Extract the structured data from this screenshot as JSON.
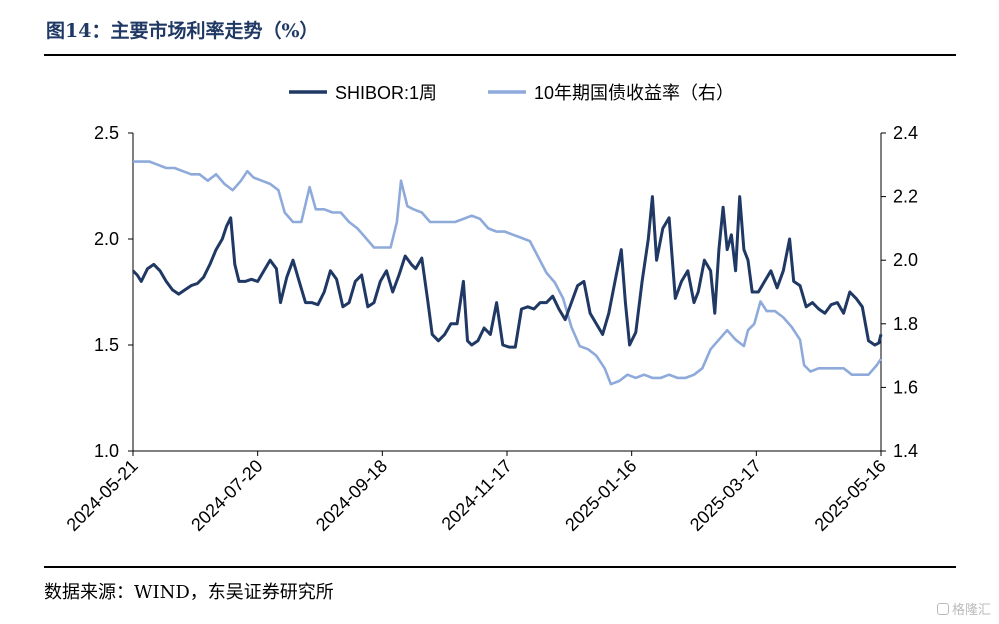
{
  "title": "图14：主要市场利率走势（%）",
  "source": "数据来源：WIND，东吴证券研究所",
  "watermark": "格隆汇",
  "colors": {
    "shibor": "#1f3864",
    "bond": "#8eaadb",
    "title": "#1f3864"
  },
  "chart_data": {
    "type": "line",
    "legend": {
      "placement": "top",
      "entries": [
        "SHIBOR:1周",
        "10年期国债收益率（右）"
      ]
    },
    "x": {
      "start": "2024-05-21",
      "end": "2025-05-16",
      "ticks": [
        "2024-05-21",
        "2024-07-20",
        "2024-09-18",
        "2024-11-17",
        "2025-01-16",
        "2025-03-17",
        "2025-05-16"
      ]
    },
    "y_left": {
      "min": 1.0,
      "max": 2.5,
      "ticks": [
        "1.0",
        "1.5",
        "2.0",
        "2.5"
      ]
    },
    "y_right": {
      "min": 1.4,
      "max": 2.4,
      "ticks": [
        "1.4",
        "1.6",
        "1.8",
        "2.0",
        "2.2",
        "2.4"
      ]
    },
    "grid": false,
    "series": [
      {
        "name": "SHIBOR:1周",
        "axis": "left",
        "points": [
          [
            "2024-05-21",
            1.85
          ],
          [
            "2024-05-23",
            1.83
          ],
          [
            "2024-05-25",
            1.8
          ],
          [
            "2024-05-28",
            1.86
          ],
          [
            "2024-05-31",
            1.88
          ],
          [
            "2024-06-03",
            1.85
          ],
          [
            "2024-06-06",
            1.8
          ],
          [
            "2024-06-09",
            1.76
          ],
          [
            "2024-06-12",
            1.74
          ],
          [
            "2024-06-15",
            1.76
          ],
          [
            "2024-06-18",
            1.78
          ],
          [
            "2024-06-21",
            1.79
          ],
          [
            "2024-06-24",
            1.82
          ],
          [
            "2024-06-27",
            1.88
          ],
          [
            "2024-06-30",
            1.95
          ],
          [
            "2024-07-03",
            2.0
          ],
          [
            "2024-07-05",
            2.06
          ],
          [
            "2024-07-07",
            2.1
          ],
          [
            "2024-07-09",
            1.88
          ],
          [
            "2024-07-11",
            1.8
          ],
          [
            "2024-07-14",
            1.8
          ],
          [
            "2024-07-17",
            1.81
          ],
          [
            "2024-07-20",
            1.8
          ],
          [
            "2024-07-23",
            1.85
          ],
          [
            "2024-07-26",
            1.9
          ],
          [
            "2024-07-29",
            1.86
          ],
          [
            "2024-07-31",
            1.7
          ],
          [
            "2024-08-03",
            1.82
          ],
          [
            "2024-08-06",
            1.9
          ],
          [
            "2024-08-09",
            1.8
          ],
          [
            "2024-08-12",
            1.7
          ],
          [
            "2024-08-15",
            1.7
          ],
          [
            "2024-08-18",
            1.69
          ],
          [
            "2024-08-21",
            1.75
          ],
          [
            "2024-08-24",
            1.85
          ],
          [
            "2024-08-27",
            1.81
          ],
          [
            "2024-08-30",
            1.68
          ],
          [
            "2024-09-02",
            1.7
          ],
          [
            "2024-09-05",
            1.8
          ],
          [
            "2024-09-08",
            1.83
          ],
          [
            "2024-09-11",
            1.68
          ],
          [
            "2024-09-14",
            1.7
          ],
          [
            "2024-09-17",
            1.8
          ],
          [
            "2024-09-20",
            1.85
          ],
          [
            "2024-09-23",
            1.75
          ],
          [
            "2024-09-26",
            1.83
          ],
          [
            "2024-09-29",
            1.92
          ],
          [
            "2024-10-02",
            1.88
          ],
          [
            "2024-10-04",
            1.86
          ],
          [
            "2024-10-07",
            1.91
          ],
          [
            "2024-10-10",
            1.7
          ],
          [
            "2024-10-12",
            1.55
          ],
          [
            "2024-10-15",
            1.52
          ],
          [
            "2024-10-18",
            1.55
          ],
          [
            "2024-10-21",
            1.6
          ],
          [
            "2024-10-24",
            1.6
          ],
          [
            "2024-10-27",
            1.8
          ],
          [
            "2024-10-29",
            1.52
          ],
          [
            "2024-10-31",
            1.5
          ],
          [
            "2024-11-03",
            1.52
          ],
          [
            "2024-11-06",
            1.58
          ],
          [
            "2024-11-09",
            1.55
          ],
          [
            "2024-11-12",
            1.7
          ],
          [
            "2024-11-15",
            1.5
          ],
          [
            "2024-11-18",
            1.49
          ],
          [
            "2024-11-21",
            1.49
          ],
          [
            "2024-11-24",
            1.67
          ],
          [
            "2024-11-27",
            1.68
          ],
          [
            "2024-11-30",
            1.67
          ],
          [
            "2024-12-03",
            1.7
          ],
          [
            "2024-12-06",
            1.7
          ],
          [
            "2024-12-09",
            1.73
          ],
          [
            "2024-12-12",
            1.67
          ],
          [
            "2024-12-15",
            1.62
          ],
          [
            "2024-12-18",
            1.7
          ],
          [
            "2024-12-21",
            1.78
          ],
          [
            "2024-12-24",
            1.8
          ],
          [
            "2024-12-27",
            1.65
          ],
          [
            "2024-12-30",
            1.6
          ],
          [
            "2025-01-02",
            1.55
          ],
          [
            "2025-01-05",
            1.65
          ],
          [
            "2025-01-08",
            1.8
          ],
          [
            "2025-01-11",
            1.95
          ],
          [
            "2025-01-13",
            1.7
          ],
          [
            "2025-01-15",
            1.5
          ],
          [
            "2025-01-18",
            1.56
          ],
          [
            "2025-01-21",
            1.8
          ],
          [
            "2025-01-24",
            2.0
          ],
          [
            "2025-01-26",
            2.2
          ],
          [
            "2025-01-28",
            1.9
          ],
          [
            "2025-01-31",
            2.05
          ],
          [
            "2025-02-03",
            2.1
          ],
          [
            "2025-02-06",
            1.72
          ],
          [
            "2025-02-09",
            1.8
          ],
          [
            "2025-02-12",
            1.85
          ],
          [
            "2025-02-15",
            1.7
          ],
          [
            "2025-02-17",
            1.75
          ],
          [
            "2025-02-20",
            1.9
          ],
          [
            "2025-02-23",
            1.85
          ],
          [
            "2025-02-25",
            1.65
          ],
          [
            "2025-02-27",
            1.95
          ],
          [
            "2025-03-01",
            2.15
          ],
          [
            "2025-03-03",
            1.95
          ],
          [
            "2025-03-05",
            2.02
          ],
          [
            "2025-03-07",
            1.85
          ],
          [
            "2025-03-09",
            2.2
          ],
          [
            "2025-03-11",
            1.95
          ],
          [
            "2025-03-13",
            1.9
          ],
          [
            "2025-03-15",
            1.75
          ],
          [
            "2025-03-18",
            1.75
          ],
          [
            "2025-03-21",
            1.8
          ],
          [
            "2025-03-24",
            1.85
          ],
          [
            "2025-03-27",
            1.77
          ],
          [
            "2025-03-30",
            1.85
          ],
          [
            "2025-04-02",
            2.0
          ],
          [
            "2025-04-04",
            1.8
          ],
          [
            "2025-04-07",
            1.78
          ],
          [
            "2025-04-10",
            1.68
          ],
          [
            "2025-04-13",
            1.7
          ],
          [
            "2025-04-16",
            1.67
          ],
          [
            "2025-04-19",
            1.65
          ],
          [
            "2025-04-22",
            1.69
          ],
          [
            "2025-04-25",
            1.7
          ],
          [
            "2025-04-28",
            1.65
          ],
          [
            "2025-05-01",
            1.75
          ],
          [
            "2025-05-04",
            1.72
          ],
          [
            "2025-05-07",
            1.68
          ],
          [
            "2025-05-10",
            1.52
          ],
          [
            "2025-05-13",
            1.5
          ],
          [
            "2025-05-15",
            1.51
          ],
          [
            "2025-05-16",
            1.55
          ]
        ]
      },
      {
        "name": "10年期国债收益率（右）",
        "axis": "right",
        "points": [
          [
            "2024-05-21",
            2.31
          ],
          [
            "2024-05-25",
            2.31
          ],
          [
            "2024-05-29",
            2.31
          ],
          [
            "2024-06-02",
            2.3
          ],
          [
            "2024-06-06",
            2.29
          ],
          [
            "2024-06-10",
            2.29
          ],
          [
            "2024-06-14",
            2.28
          ],
          [
            "2024-06-18",
            2.27
          ],
          [
            "2024-06-22",
            2.27
          ],
          [
            "2024-06-26",
            2.25
          ],
          [
            "2024-06-30",
            2.27
          ],
          [
            "2024-07-04",
            2.24
          ],
          [
            "2024-07-08",
            2.22
          ],
          [
            "2024-07-12",
            2.25
          ],
          [
            "2024-07-15",
            2.28
          ],
          [
            "2024-07-18",
            2.26
          ],
          [
            "2024-07-22",
            2.25
          ],
          [
            "2024-07-26",
            2.24
          ],
          [
            "2024-07-30",
            2.22
          ],
          [
            "2024-08-02",
            2.15
          ],
          [
            "2024-08-06",
            2.12
          ],
          [
            "2024-08-10",
            2.12
          ],
          [
            "2024-08-14",
            2.23
          ],
          [
            "2024-08-17",
            2.16
          ],
          [
            "2024-08-21",
            2.16
          ],
          [
            "2024-08-25",
            2.15
          ],
          [
            "2024-08-29",
            2.15
          ],
          [
            "2024-09-02",
            2.12
          ],
          [
            "2024-09-06",
            2.1
          ],
          [
            "2024-09-10",
            2.07
          ],
          [
            "2024-09-14",
            2.04
          ],
          [
            "2024-09-18",
            2.04
          ],
          [
            "2024-09-22",
            2.04
          ],
          [
            "2024-09-25",
            2.12
          ],
          [
            "2024-09-27",
            2.25
          ],
          [
            "2024-09-30",
            2.17
          ],
          [
            "2024-10-03",
            2.16
          ],
          [
            "2024-10-07",
            2.15
          ],
          [
            "2024-10-11",
            2.12
          ],
          [
            "2024-10-15",
            2.12
          ],
          [
            "2024-10-19",
            2.12
          ],
          [
            "2024-10-23",
            2.12
          ],
          [
            "2024-10-27",
            2.13
          ],
          [
            "2024-10-31",
            2.14
          ],
          [
            "2024-11-04",
            2.13
          ],
          [
            "2024-11-08",
            2.1
          ],
          [
            "2024-11-12",
            2.09
          ],
          [
            "2024-11-16",
            2.09
          ],
          [
            "2024-11-20",
            2.08
          ],
          [
            "2024-11-24",
            2.07
          ],
          [
            "2024-11-28",
            2.06
          ],
          [
            "2024-12-02",
            2.01
          ],
          [
            "2024-12-06",
            1.96
          ],
          [
            "2024-12-10",
            1.93
          ],
          [
            "2024-12-14",
            1.88
          ],
          [
            "2024-12-18",
            1.79
          ],
          [
            "2024-12-22",
            1.73
          ],
          [
            "2024-12-26",
            1.72
          ],
          [
            "2024-12-30",
            1.7
          ],
          [
            "2025-01-03",
            1.66
          ],
          [
            "2025-01-06",
            1.61
          ],
          [
            "2025-01-10",
            1.62
          ],
          [
            "2025-01-14",
            1.64
          ],
          [
            "2025-01-18",
            1.63
          ],
          [
            "2025-01-22",
            1.64
          ],
          [
            "2025-01-26",
            1.63
          ],
          [
            "2025-01-30",
            1.63
          ],
          [
            "2025-02-03",
            1.64
          ],
          [
            "2025-02-07",
            1.63
          ],
          [
            "2025-02-11",
            1.63
          ],
          [
            "2025-02-15",
            1.64
          ],
          [
            "2025-02-19",
            1.66
          ],
          [
            "2025-02-23",
            1.72
          ],
          [
            "2025-02-27",
            1.75
          ],
          [
            "2025-03-03",
            1.78
          ],
          [
            "2025-03-07",
            1.75
          ],
          [
            "2025-03-11",
            1.73
          ],
          [
            "2025-03-13",
            1.78
          ],
          [
            "2025-03-16",
            1.8
          ],
          [
            "2025-03-19",
            1.87
          ],
          [
            "2025-03-22",
            1.84
          ],
          [
            "2025-03-26",
            1.84
          ],
          [
            "2025-03-30",
            1.82
          ],
          [
            "2025-04-03",
            1.79
          ],
          [
            "2025-04-07",
            1.75
          ],
          [
            "2025-04-09",
            1.67
          ],
          [
            "2025-04-12",
            1.65
          ],
          [
            "2025-04-16",
            1.66
          ],
          [
            "2025-04-20",
            1.66
          ],
          [
            "2025-04-24",
            1.66
          ],
          [
            "2025-04-28",
            1.66
          ],
          [
            "2025-05-02",
            1.64
          ],
          [
            "2025-05-06",
            1.64
          ],
          [
            "2025-05-10",
            1.64
          ],
          [
            "2025-05-14",
            1.67
          ],
          [
            "2025-05-16",
            1.69
          ]
        ]
      }
    ]
  }
}
